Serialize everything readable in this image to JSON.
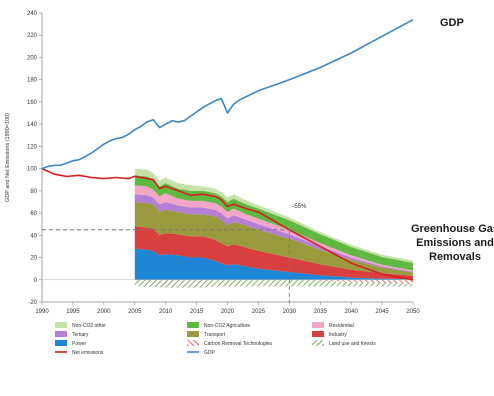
{
  "chart_data": {
    "type": "area",
    "ylabel": "GDP and Net Emissions (1990=100)",
    "ylim": [
      -20,
      240
    ],
    "xlim": [
      1990,
      2050
    ],
    "yticks": [
      -20,
      0,
      20,
      40,
      60,
      80,
      100,
      120,
      140,
      160,
      180,
      200,
      220,
      240
    ],
    "xticks": [
      1990,
      1995,
      2000,
      2005,
      2010,
      2015,
      2020,
      2025,
      2030,
      2035,
      2040,
      2045,
      2050
    ],
    "grid": false,
    "legend_position": "bottom",
    "annotations": {
      "gdp_label": "GDP",
      "ghg_label_lines": [
        "Greenhouse Gas",
        "Emissions and",
        "Removals"
      ],
      "reduction_label": "-55%",
      "reduction_year": 2030,
      "reduction_level": 45
    },
    "x": [
      2005,
      2007,
      2008,
      2009,
      2010,
      2012,
      2014,
      2016,
      2018,
      2019,
      2020,
      2021,
      2023,
      2025,
      2030,
      2035,
      2040,
      2045,
      2050
    ],
    "stacked_series": [
      {
        "name": "Power",
        "color": "#1f86d6",
        "values": [
          28,
          27,
          26,
          22,
          23,
          22,
          20,
          20,
          17,
          15,
          13,
          14,
          12,
          10,
          7,
          4,
          2,
          1,
          0.5
        ]
      },
      {
        "name": "Industry",
        "color": "#d84040",
        "values": [
          20,
          20,
          20,
          18,
          19,
          19,
          19,
          19,
          19,
          18,
          17,
          18,
          17,
          16,
          13,
          10,
          7,
          5,
          3
        ]
      },
      {
        "name": "Transport",
        "color": "#9a9a3e",
        "values": [
          22,
          22,
          22,
          21,
          21,
          20,
          20,
          20,
          21,
          21,
          19,
          20,
          20,
          19,
          17,
          13,
          9,
          5,
          3
        ]
      },
      {
        "name": "Tertiary",
        "color": "#b57fd6",
        "values": [
          7,
          7,
          6,
          7,
          7,
          6,
          6,
          6,
          6,
          6,
          6,
          6,
          5,
          5,
          4,
          3,
          2,
          1,
          0.8
        ]
      },
      {
        "name": "Residential",
        "color": "#f4a6c8",
        "values": [
          8,
          8,
          7,
          7,
          8,
          6,
          6,
          6,
          6,
          6,
          6,
          6,
          5,
          5,
          4,
          3,
          2,
          1.5,
          1
        ]
      },
      {
        "name": "Non-CO2 Agriculture",
        "color": "#5fb83f",
        "values": [
          9,
          9,
          9,
          9,
          9,
          9,
          9,
          9,
          9,
          9,
          9,
          9,
          9,
          9,
          8.5,
          8,
          7.5,
          7,
          7
        ]
      },
      {
        "name": "Non-CO2 other",
        "color": "#c5e3a8",
        "values": [
          6,
          6,
          6,
          5,
          5,
          5,
          5,
          4,
          4,
          4,
          4,
          4,
          3.5,
          3,
          2.5,
          2,
          2,
          2,
          2
        ]
      }
    ],
    "negative_series": [
      {
        "name": "Land use and forests",
        "color": "#6aa84f",
        "pattern": "hatch",
        "x": [
          2005,
          2010,
          2015,
          2020,
          2025,
          2030,
          2035,
          2040,
          2045,
          2050
        ],
        "values": [
          -6,
          -7,
          -7,
          -6,
          -6,
          -6,
          -6,
          -6,
          -6,
          -6
        ]
      },
      {
        "name": "Carbon Removal Technologies",
        "color": "#e06060",
        "pattern": "hatch",
        "x": [
          2030,
          2035,
          2040,
          2045,
          2050
        ],
        "values": [
          0,
          -1,
          -2,
          -3,
          -4
        ]
      }
    ],
    "line_series": [
      {
        "name": "Net emissions",
        "color": "#d42020",
        "x": [
          1990,
          1992,
          1994,
          1996,
          1998,
          2000,
          2002,
          2004,
          2005,
          2006,
          2007,
          2008,
          2009,
          2010,
          2012,
          2014,
          2016,
          2018,
          2019,
          2020,
          2021,
          2023,
          2025,
          2030,
          2035,
          2040,
          2045,
          2050
        ],
        "values": [
          100,
          95,
          93,
          94,
          92,
          91,
          92,
          91,
          93,
          92,
          91,
          90,
          82,
          84,
          80,
          76,
          77,
          75,
          72,
          66,
          68,
          64,
          61,
          45,
          30,
          15,
          5,
          0
        ]
      },
      {
        "name": "GDP",
        "color": "#3d86c6",
        "x": [
          1990,
          1991,
          1992,
          1993,
          1994,
          1995,
          1996,
          1997,
          1998,
          1999,
          2000,
          2001,
          2002,
          2003,
          2004,
          2005,
          2006,
          2007,
          2008,
          2009,
          2010,
          2011,
          2012,
          2013,
          2014,
          2015,
          2016,
          2017,
          2018,
          2019,
          2020,
          2021,
          2022,
          2025,
          2030,
          2035,
          2040,
          2045,
          2050
        ],
        "values": [
          100,
          102,
          103,
          103,
          105,
          107,
          108,
          111,
          114,
          118,
          122,
          125,
          127,
          128,
          131,
          135,
          138,
          142,
          144,
          137,
          140,
          143,
          142,
          143,
          147,
          151,
          155,
          158,
          161,
          163,
          150,
          158,
          162,
          170,
          180,
          191,
          204,
          219,
          234
        ]
      }
    ],
    "legend": [
      {
        "label": "Non-CO2 other",
        "color": "#c5e3a8",
        "kind": "swatch"
      },
      {
        "label": "Non-CO2 Agriculture",
        "color": "#5fb83f",
        "kind": "swatch"
      },
      {
        "label": "Residential",
        "color": "#f4a6c8",
        "kind": "swatch"
      },
      {
        "label": "Tertiary",
        "color": "#b57fd6",
        "kind": "swatch"
      },
      {
        "label": "Transport",
        "color": "#9a9a3e",
        "kind": "swatch"
      },
      {
        "label": "Industry",
        "color": "#d84040",
        "kind": "swatch"
      },
      {
        "label": "Power",
        "color": "#1f86d6",
        "kind": "swatch"
      },
      {
        "label": "Carbon Removal Technologies",
        "color": "#e06060",
        "kind": "hatch"
      },
      {
        "label": "Land use and forests",
        "color": "#6aa84f",
        "kind": "hatch"
      },
      {
        "label": "Net emissions",
        "color": "#d42020",
        "kind": "line"
      },
      {
        "label": "GDP",
        "color": "#3d86c6",
        "kind": "line"
      }
    ]
  }
}
